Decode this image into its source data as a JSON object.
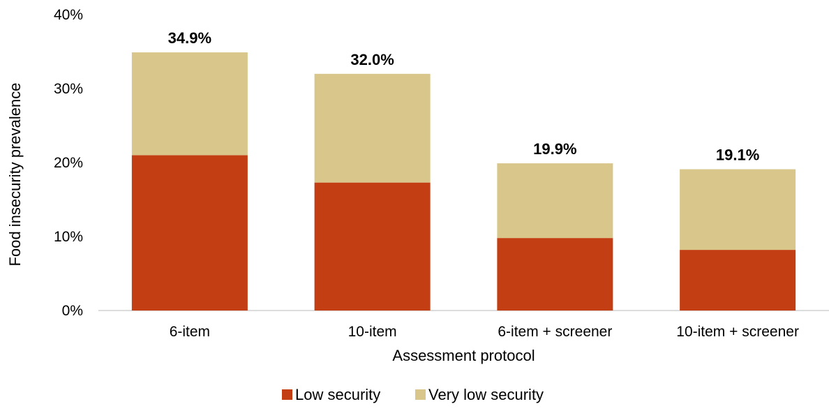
{
  "chart_data": {
    "type": "bar",
    "stacked": true,
    "title": "",
    "xlabel": "Assessment protocol",
    "ylabel": "Food insecurity prevalence",
    "ylim": [
      0,
      40
    ],
    "yticks": [
      "0%",
      "10%",
      "20%",
      "30%",
      "40%"
    ],
    "categories": [
      "6-item",
      "10-item",
      "6-item + screener",
      "10-item + screener"
    ],
    "series": [
      {
        "name": "Low security",
        "color": "#C43E13",
        "values": [
          21.0,
          17.3,
          9.8,
          8.2
        ]
      },
      {
        "name": "Very low security",
        "color": "#D8C68A",
        "values": [
          13.9,
          14.7,
          10.1,
          10.9
        ]
      }
    ],
    "totals": [
      34.9,
      32.0,
      19.9,
      19.1
    ],
    "total_labels": [
      "34.9%",
      "32.0%",
      "19.9%",
      "19.1%"
    ],
    "grid": false,
    "legend_position": "bottom"
  }
}
